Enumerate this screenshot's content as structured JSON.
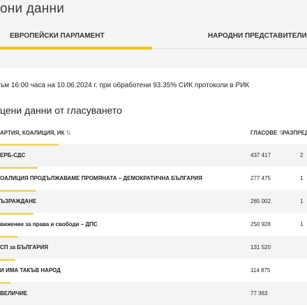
{
  "header": {
    "title": "они данни"
  },
  "tabs": [
    {
      "label": "ЕВРОПЕЙСКИ ПАРЛАМЕНТ",
      "active": true
    },
    {
      "label": "НАРОДНИ ПРЕДСТАВИТЕЛИ",
      "active": false
    }
  ],
  "status_text": "ъм 16:00 часа на 10.06.2024 г. при обработени 93.35% СИК протоколи в РИК",
  "section_title": "цени данни от гласуването",
  "table": {
    "columns": {
      "name": "АРТИЯ, КОАЛИЦИЯ, ИК",
      "votes": "ГЛАСОВЕ",
      "distribution": "РАЗПРЕДЕ"
    },
    "sort_icon": "⇅",
    "rows": [
      {
        "name": "ЕРБ-СДС",
        "votes": "437 417",
        "pct": "2",
        "share": 23.7
      },
      {
        "name": "ОАЛИЦИЯ ПРОДЪЛЖАВАМЕ ПРОМЯНАТА – ДЕМОКРАТИЧНА БЪЛГАРИЯ",
        "votes": "277 475",
        "pct": "1",
        "share": 15.1
      },
      {
        "name": "ЪЗРАЖДАНЕ",
        "votes": "265 002",
        "pct": "1",
        "share": 14.4
      },
      {
        "name": "вижение за права и свободи – ДПС",
        "votes": "250 928",
        "pct": "1",
        "share": 13.6
      },
      {
        "name": "СП за БЪЛГАРИЯ",
        "votes": "131 520",
        "pct": "",
        "share": 7.1
      },
      {
        "name": "И ИМА ТАКЪВ НАРОД",
        "votes": "114 875",
        "pct": "",
        "share": 6.2
      },
      {
        "name": "ВЕЛИЧИЕ",
        "votes": "77 363",
        "pct": "",
        "share": 4.2
      }
    ]
  },
  "colors": {
    "accent": "#f2c500",
    "bar": "#f0d86a",
    "row_alt": "#f3f4f6"
  }
}
